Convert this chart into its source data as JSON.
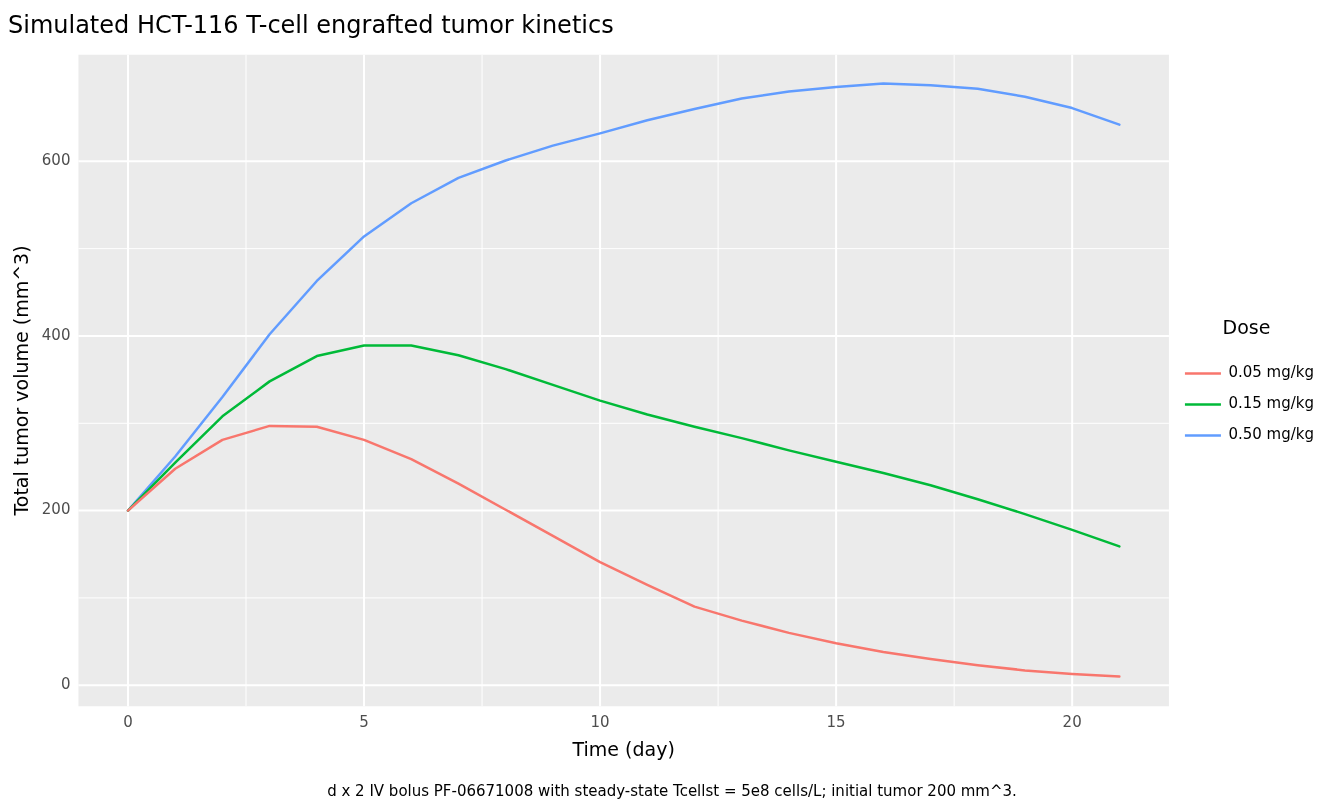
{
  "chart_data": {
    "type": "line",
    "title": "Simulated HCT-116 T-cell engrafted tumor kinetics",
    "xlabel": "Time (day)",
    "ylabel": "Total tumor volume (mm^3)",
    "legend_title": "Dose",
    "legend": "right",
    "grid": true,
    "marker": "none",
    "line_style": "solid",
    "x": [
      0,
      1,
      2,
      3,
      4,
      5,
      6,
      7,
      8,
      9,
      10,
      11,
      12,
      13,
      14,
      15,
      16,
      17,
      18,
      19,
      20,
      21
    ],
    "xlim": [
      -1.05,
      22.05
    ],
    "xticks": [
      0,
      5,
      10,
      15,
      20
    ],
    "ylim": [
      -24,
      722
    ],
    "yticks": [
      0,
      200,
      400,
      600
    ],
    "series": [
      {
        "name": "0.05 mg/kg",
        "color": "#f8766d",
        "values": [
          200,
          248,
          281,
          297,
          296,
          281,
          259,
          231,
          201,
          171,
          141,
          115,
          90,
          74,
          60,
          48,
          38,
          30,
          23,
          17,
          13,
          10
        ]
      },
      {
        "name": "0.15 mg/kg",
        "color": "#00ba38",
        "values": [
          200,
          255,
          308,
          348,
          377,
          389,
          389,
          378,
          362,
          344,
          326,
          310,
          296,
          283,
          269,
          256,
          243,
          229,
          213,
          196,
          178,
          159
        ]
      },
      {
        "name": "0.50 mg/kg",
        "color": "#619cff",
        "values": [
          200,
          262,
          330,
          402,
          463,
          514,
          552,
          581,
          601,
          618,
          632,
          647,
          660,
          672,
          680,
          685,
          689,
          687,
          683,
          674,
          661,
          642
        ]
      }
    ],
    "annotations": [
      "d x 2 IV bolus PF-06671008 with steady-state Tcellst = 5e8 cells/L; initial tumor 200 mm^3."
    ]
  }
}
